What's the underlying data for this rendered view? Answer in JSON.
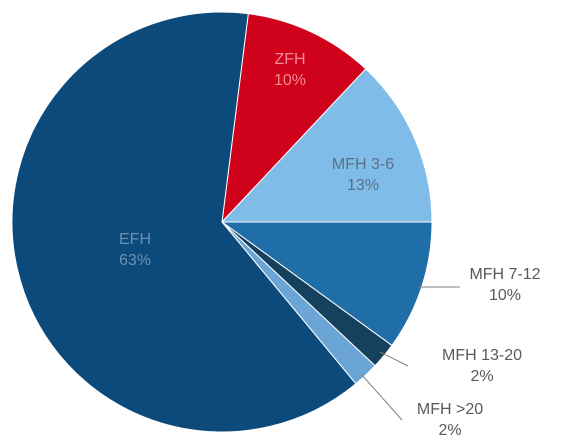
{
  "chart_data": {
    "type": "pie",
    "categories": [
      "ZFH",
      "MFH 3-6",
      "MFH 7-12",
      "MFH 13-20",
      "MFH >20",
      "EFH"
    ],
    "values": [
      10,
      13,
      10,
      2,
      2,
      63
    ],
    "value_labels": [
      "10%",
      "13%",
      "10%",
      "2%",
      "2%",
      "63%"
    ],
    "colors": [
      "#d0021b",
      "#7fbde8",
      "#1f6ea8",
      "#15415f",
      "#6aa5d6",
      "#0b4a7b"
    ]
  }
}
